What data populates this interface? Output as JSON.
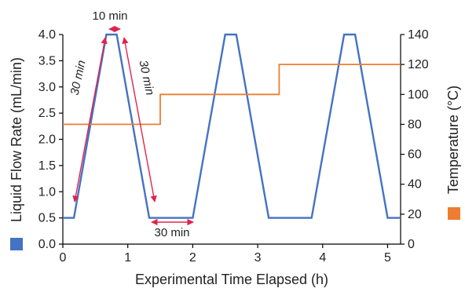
{
  "chart_data": {
    "type": "line",
    "xlabel": "Experimental Time Elapsed (h)",
    "ylabel": "Liquid Flow Rate (mL/min)",
    "y2label": "Temperature (°C)",
    "xlim": [
      0,
      5.2
    ],
    "ylim": [
      0,
      4.0
    ],
    "y2lim": [
      0,
      140
    ],
    "x_ticks": [
      "0",
      "1",
      "2",
      "3",
      "4",
      "5"
    ],
    "y_ticks": [
      "0.0",
      "0.5",
      "1.0",
      "1.5",
      "2.0",
      "2.5",
      "3.0",
      "3.5",
      "4.0"
    ],
    "y2_ticks": [
      "0",
      "20",
      "40",
      "60",
      "80",
      "100",
      "120",
      "140"
    ],
    "grid": false,
    "series": [
      {
        "axis": "left",
        "color": "#4472C4",
        "x": [
          0,
          0.17,
          0.67,
          0.83,
          1.33,
          2.0,
          2.5,
          2.67,
          3.17,
          3.83,
          4.33,
          4.5,
          5.0,
          5.2
        ],
        "y": [
          0.5,
          0.5,
          4.0,
          4.0,
          0.5,
          0.5,
          4.0,
          4.0,
          0.5,
          0.5,
          4.0,
          4.0,
          0.5,
          0.5
        ]
      },
      {
        "axis": "right",
        "color": "#ED7D31",
        "x": [
          0,
          1.5,
          1.5,
          3.33,
          3.33,
          5.2
        ],
        "y": [
          80,
          80,
          100,
          100,
          120,
          120
        ]
      }
    ],
    "annotations": [
      {
        "text": "10 min",
        "color": "#E0234E"
      },
      {
        "text": "30 min",
        "color": "#E0234E"
      },
      {
        "text": "30 min",
        "color": "#E0234E"
      },
      {
        "text": "30 min",
        "color": "#E0234E"
      }
    ]
  }
}
